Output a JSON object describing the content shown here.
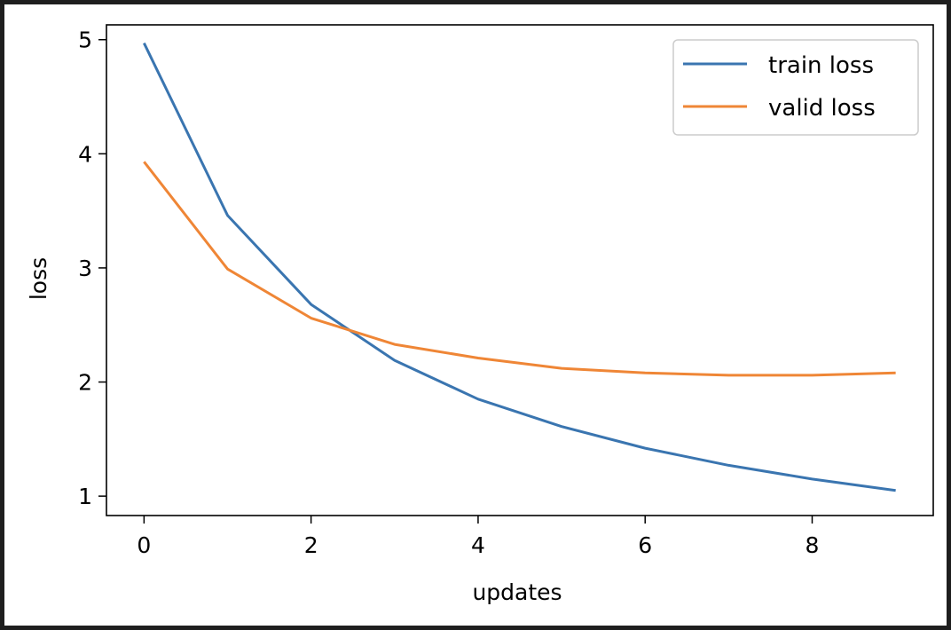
{
  "chart_data": {
    "type": "line",
    "xlabel": "updates",
    "ylabel": "loss",
    "xlim": [
      -0.45,
      9.45
    ],
    "ylim": [
      0.83,
      5.13
    ],
    "x_ticks": [
      0,
      2,
      4,
      6,
      8
    ],
    "y_ticks": [
      1,
      2,
      3,
      4,
      5
    ],
    "grid": false,
    "legend": "top-right",
    "x": [
      0,
      1,
      2,
      3,
      4,
      5,
      6,
      7,
      8,
      9
    ],
    "series": [
      {
        "name": "train loss",
        "color": "#3a75b0",
        "values": [
          4.97,
          3.46,
          2.68,
          2.19,
          1.85,
          1.61,
          1.42,
          1.27,
          1.15,
          1.05
        ]
      },
      {
        "name": "valid loss",
        "color": "#ef8636",
        "values": [
          3.93,
          2.99,
          2.56,
          2.33,
          2.21,
          2.12,
          2.08,
          2.06,
          2.06,
          2.08
        ]
      }
    ]
  }
}
